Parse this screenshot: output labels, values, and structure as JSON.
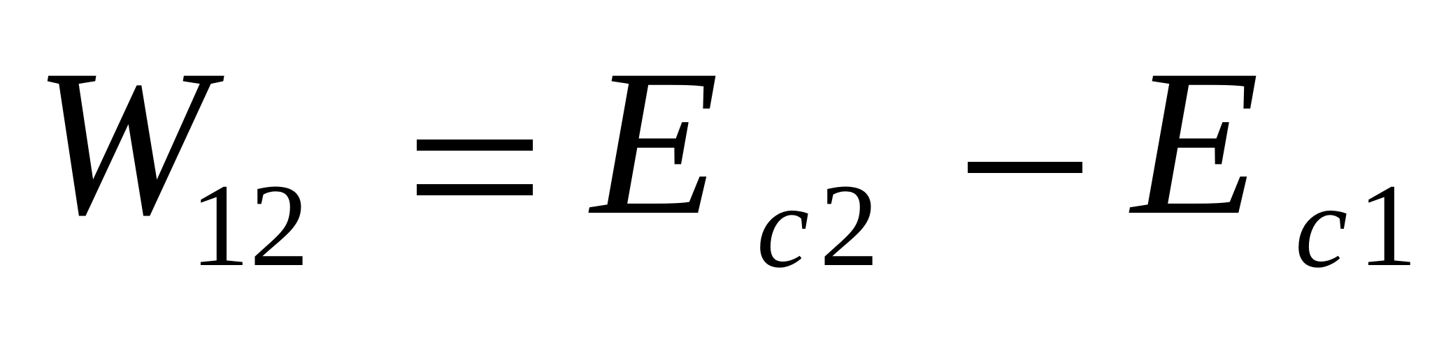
{
  "equation": {
    "lhs": {
      "symbol": "W",
      "subscript": "12"
    },
    "equals": "=",
    "term1": {
      "symbol": "E",
      "subscript_var": "c",
      "subscript_num": "2"
    },
    "operator": "−",
    "term2": {
      "symbol": "E",
      "subscript_var": "c",
      "subscript_num": "1"
    }
  }
}
